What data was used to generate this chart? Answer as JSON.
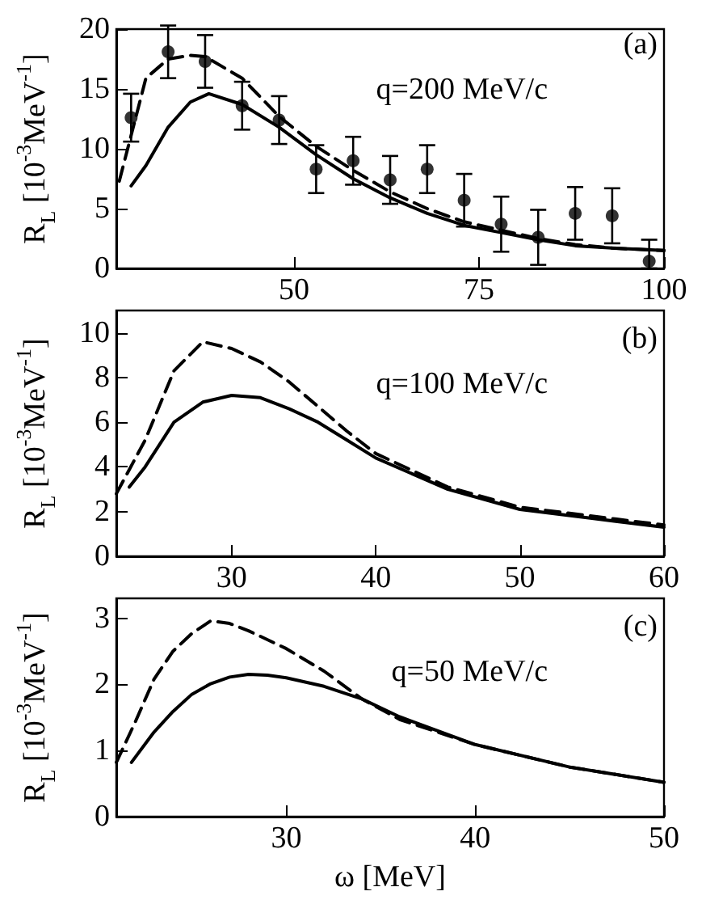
{
  "chart_data": [
    {
      "type": "line",
      "ylabel": "R$_{L}$ [10$^{-3}$MeV$^{-1}$]",
      "annotations": [
        "(a)",
        "q=200 MeV/c"
      ],
      "xlim": [
        26,
        100
      ],
      "xticks": [
        50,
        75,
        100
      ],
      "ylim": [
        0,
        20
      ],
      "yticks": [
        0,
        5,
        10,
        15,
        20
      ],
      "series": [
        {
          "color": "#000000",
          "line_style": "dashed",
          "marker": "none",
          "x": [
            26.4,
            30,
            33,
            36,
            38,
            43,
            48,
            53,
            58,
            63,
            68,
            73,
            78,
            83,
            88,
            93,
            100
          ],
          "values": [
            7.3,
            15.9,
            17.5,
            17.8,
            17.7,
            15.9,
            12.7,
            10.2,
            8.2,
            6.4,
            5.0,
            3.9,
            3.2,
            2.5,
            2.0,
            1.7,
            1.5
          ]
        },
        {
          "color": "#000000",
          "line_style": "solid",
          "marker": "none",
          "x": [
            28,
            30,
            33,
            36,
            38.5,
            43,
            48,
            53,
            58,
            63,
            68,
            73,
            78,
            83,
            88,
            93,
            100
          ],
          "values": [
            6.9,
            8.6,
            11.8,
            13.9,
            14.6,
            13.7,
            11.8,
            9.5,
            7.5,
            5.9,
            4.6,
            3.6,
            3.0,
            2.4,
            1.9,
            1.7,
            1.5
          ]
        },
        {
          "type": "scatter",
          "color": "#000000",
          "marker": "circle",
          "x": [
            28,
            33,
            38,
            43,
            48,
            53,
            58,
            63,
            68,
            73,
            78,
            83,
            88,
            93,
            98
          ],
          "values": [
            12.6,
            18.1,
            17.3,
            13.6,
            12.4,
            8.3,
            9.0,
            7.4,
            8.3,
            5.7,
            3.7,
            2.6,
            4.6,
            4.4,
            0.6
          ],
          "errors": [
            2,
            2.2,
            2.2,
            2,
            2,
            2,
            2,
            2,
            2,
            2.2,
            2.3,
            2.3,
            2.2,
            2.3,
            [
              0,
              2.4
            ]
          ]
        }
      ]
    },
    {
      "type": "line",
      "ylabel": "R$_{L}$ [10$^{-3}$MeV$^{-1}$]",
      "annotations": [
        "(b)",
        "q=100 MeV/c"
      ],
      "xlim": [
        22,
        60
      ],
      "xticks": [
        30,
        40,
        50,
        60
      ],
      "ylim": [
        0,
        11
      ],
      "yticks": [
        0,
        2,
        4,
        6,
        8,
        10
      ],
      "series": [
        {
          "color": "#000000",
          "line_style": "dashed",
          "marker": "none",
          "x": [
            22,
            24,
            26,
            28,
            30,
            32,
            34,
            36,
            38,
            40,
            45,
            50,
            55,
            60
          ],
          "values": [
            2.8,
            5.2,
            8.3,
            9.6,
            9.3,
            8.7,
            7.8,
            6.7,
            5.6,
            4.6,
            3.1,
            2.2,
            1.8,
            1.4
          ]
        },
        {
          "color": "#000000",
          "line_style": "solid",
          "marker": "none",
          "x": [
            22.9,
            24,
            26,
            28,
            30,
            32,
            34,
            36,
            38,
            40,
            45,
            50,
            55,
            60
          ],
          "values": [
            3.1,
            4.0,
            6.0,
            6.9,
            7.2,
            7.1,
            6.6,
            6.0,
            5.2,
            4.4,
            3.0,
            2.1,
            1.7,
            1.3
          ]
        }
      ]
    },
    {
      "type": "line",
      "ylabel": "R$_{L}$ [10$^{-3}$MeV$^{-1}$]",
      "xlabel": "ω [MeV]",
      "annotations": [
        "(c)",
        "q=50 MeV/c"
      ],
      "xlim": [
        21,
        50
      ],
      "xticks": [
        30,
        40,
        50
      ],
      "ylim": [
        0,
        3.3
      ],
      "yticks": [
        0,
        1,
        2,
        3
      ],
      "series": [
        {
          "color": "#000000",
          "line_style": "dashed",
          "marker": "none",
          "x": [
            21,
            22,
            23,
            24,
            25,
            26,
            27,
            28,
            30,
            32,
            34,
            36,
            40,
            45,
            50
          ],
          "values": [
            0.82,
            1.43,
            2.08,
            2.5,
            2.77,
            2.96,
            2.92,
            2.81,
            2.54,
            2.2,
            1.78,
            1.47,
            1.09,
            0.75,
            0.52
          ]
        },
        {
          "color": "#000000",
          "line_style": "solid",
          "marker": "none",
          "x": [
            21.8,
            23,
            24,
            25,
            26,
            27,
            28,
            29,
            30,
            32,
            34,
            36,
            40,
            45,
            50
          ],
          "values": [
            0.82,
            1.28,
            1.59,
            1.85,
            2.01,
            2.11,
            2.15,
            2.14,
            2.1,
            1.97,
            1.78,
            1.51,
            1.09,
            0.75,
            0.52
          ]
        }
      ]
    }
  ]
}
